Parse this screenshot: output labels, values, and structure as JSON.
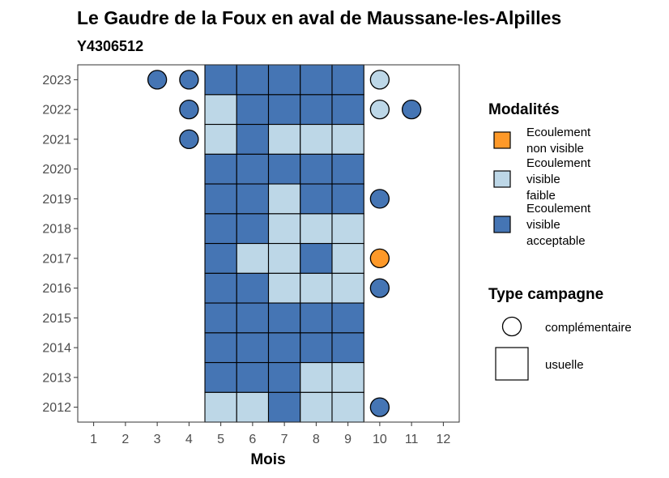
{
  "chart_data": {
    "type": "heatmap",
    "title": "Le Gaudre de la Foux en aval de Maussane-les-Alpilles",
    "subtitle": "Y4306512",
    "xlabel": "Mois",
    "ylabel": "",
    "x_ticks": [
      "1",
      "2",
      "3",
      "4",
      "5",
      "6",
      "7",
      "8",
      "9",
      "10",
      "11",
      "12"
    ],
    "y_ticks": [
      "2012",
      "2013",
      "2014",
      "2015",
      "2016",
      "2017",
      "2018",
      "2019",
      "2020",
      "2021",
      "2022",
      "2023"
    ],
    "xlim": [
      0.5,
      12.5
    ],
    "ylim": [
      2011.5,
      2023.5
    ],
    "grid": false,
    "usual_months": [
      5,
      6,
      7,
      8,
      9
    ],
    "modalities": [
      {
        "key": "nv",
        "label_lines": [
          "Ecoulement",
          "non visible"
        ],
        "color": "#fe9929"
      },
      {
        "key": "vf",
        "label_lines": [
          "Ecoulement",
          "visible",
          "faible"
        ],
        "color": "#bdd7e7"
      },
      {
        "key": "va",
        "label_lines": [
          "Ecoulement",
          "visible",
          "acceptable"
        ],
        "color": "#4575b4"
      }
    ],
    "legend_modalites_title": "Modalités",
    "legend_type_title": "Type campagne",
    "type_labels": {
      "complementaire": "complémentaire",
      "usuelle": "usuelle"
    },
    "legend_position": "right",
    "usual": {
      "2023": [
        "va",
        "va",
        "va",
        "va",
        "va"
      ],
      "2022": [
        "vf",
        "va",
        "va",
        "va",
        "va"
      ],
      "2021": [
        "vf",
        "va",
        "vf",
        "vf",
        "vf"
      ],
      "2020": [
        "va",
        "va",
        "va",
        "va",
        "va"
      ],
      "2019": [
        "va",
        "va",
        "vf",
        "va",
        "va"
      ],
      "2018": [
        "va",
        "va",
        "vf",
        "vf",
        "vf"
      ],
      "2017": [
        "va",
        "vf",
        "vf",
        "va",
        "vf"
      ],
      "2016": [
        "va",
        "va",
        "vf",
        "vf",
        "vf"
      ],
      "2015": [
        "va",
        "va",
        "va",
        "va",
        "va"
      ],
      "2014": [
        "va",
        "va",
        "va",
        "va",
        "va"
      ],
      "2013": [
        "va",
        "va",
        "va",
        "vf",
        "vf"
      ],
      "2012": [
        "vf",
        "vf",
        "va",
        "vf",
        "vf"
      ]
    },
    "complementary": [
      {
        "year": 2023,
        "month": 3,
        "mod": "va"
      },
      {
        "year": 2023,
        "month": 4,
        "mod": "va"
      },
      {
        "year": 2023,
        "month": 10,
        "mod": "vf"
      },
      {
        "year": 2022,
        "month": 4,
        "mod": "va"
      },
      {
        "year": 2022,
        "month": 10,
        "mod": "vf"
      },
      {
        "year": 2022,
        "month": 11,
        "mod": "va"
      },
      {
        "year": 2021,
        "month": 4,
        "mod": "va"
      },
      {
        "year": 2019,
        "month": 10,
        "mod": "va"
      },
      {
        "year": 2017,
        "month": 10,
        "mod": "nv"
      },
      {
        "year": 2016,
        "month": 10,
        "mod": "va"
      },
      {
        "year": 2012,
        "month": 10,
        "mod": "va"
      }
    ]
  }
}
